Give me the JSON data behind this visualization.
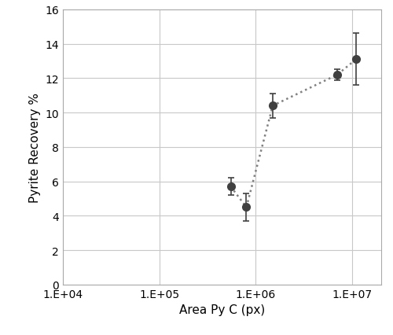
{
  "x": [
    550000.0,
    800000.0,
    1500000.0,
    7000000.0,
    11000000.0
  ],
  "y": [
    5.7,
    4.5,
    10.4,
    12.2,
    13.1
  ],
  "yerr_lower": [
    0.5,
    0.8,
    0.7,
    0.3,
    1.5
  ],
  "yerr_upper": [
    0.5,
    0.8,
    0.7,
    0.3,
    1.5
  ],
  "xlabel": "Area Py C (px)",
  "ylabel": "Pyrite Recovery %",
  "ylim": [
    0,
    16
  ],
  "yticks": [
    0,
    2,
    4,
    6,
    8,
    10,
    12,
    14,
    16
  ],
  "xlim_log": [
    10000.0,
    20000000.0
  ],
  "xtick_positions": [
    10000.0,
    100000.0,
    1000000.0,
    10000000.0
  ],
  "xtick_labels": [
    "1.E+04",
    "1.E+05",
    "1.E+06",
    "1.E+07"
  ],
  "marker_color": "#404040",
  "marker_size": 7,
  "line_color": "#808080",
  "background_color": "#ffffff",
  "grid_color": "#c8c8c8",
  "spine_color": "#aaaaaa",
  "tick_label_fontsize": 10,
  "axis_label_fontsize": 11
}
